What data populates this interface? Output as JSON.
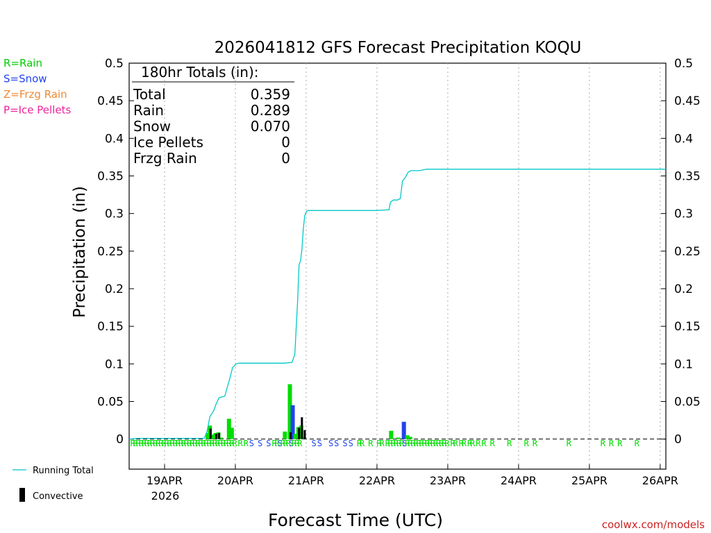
{
  "chart_data": {
    "type": "bar",
    "title": "2026041812 GFS Forecast Precipitation KOQU",
    "xlabel": "Forecast Time (UTC)",
    "ylabel": "Precipitation (in)",
    "ylim": [
      -0.04,
      0.5
    ],
    "xlim_days": [
      0,
      7.58
    ],
    "y_ticks": [
      "0",
      "0.05",
      "0.1",
      "0.15",
      "0.2",
      "0.25",
      "0.3",
      "0.35",
      "0.4",
      "0.45",
      "0.5"
    ],
    "x_ticks": [
      {
        "label": "19APR",
        "day": 0.5
      },
      {
        "label": "20APR",
        "day": 1.5
      },
      {
        "label": "21APR",
        "day": 2.5
      },
      {
        "label": "22APR",
        "day": 3.5
      },
      {
        "label": "23APR",
        "day": 4.5
      },
      {
        "label": "24APR",
        "day": 5.5
      },
      {
        "label": "25APR",
        "day": 6.5
      },
      {
        "label": "26APR",
        "day": 7.5
      }
    ],
    "x_year_label": "2026",
    "totals_box": {
      "heading": "180hr Totals (in):",
      "rows": [
        {
          "label": "Total",
          "value": "0.359"
        },
        {
          "label": "Rain",
          "value": "0.289"
        },
        {
          "label": "Snow",
          "value": "0.070"
        },
        {
          "label": "Ice Pellets",
          "value": "0"
        },
        {
          "label": "Frzg Rain",
          "value": "0"
        }
      ]
    },
    "ptype_legend": [
      {
        "text": "R=Rain",
        "color": "#00cc00"
      },
      {
        "text": "S=Snow",
        "color": "#2244ee"
      },
      {
        "text": "Z=Frzg Rain",
        "color": "#ee8833"
      },
      {
        "text": "P=Ice Pellets",
        "color": "#ee2299"
      }
    ],
    "legend_running_total": "Running Total",
    "legend_convective": "Convective",
    "credit": "coolwx.com/models",
    "colors": {
      "rain": "#00dd00",
      "snow": "#2244ee",
      "convective": "#000000",
      "running_total": "#00c8c8",
      "credit": "#cc2222"
    },
    "running_total": {
      "x": [
        0.0,
        0.12,
        0.5,
        1.06,
        1.1,
        1.14,
        1.19,
        1.23,
        1.27,
        1.35,
        1.42,
        1.46,
        1.51,
        1.55,
        1.59,
        1.63,
        1.68,
        1.72,
        1.9,
        2.1,
        2.2,
        2.3,
        2.34,
        2.38,
        2.4,
        2.42,
        2.44,
        2.46,
        2.48,
        2.5,
        2.52,
        2.54,
        2.56,
        2.58,
        2.6,
        2.7,
        3.0,
        3.5,
        3.67,
        3.69,
        3.73,
        3.79,
        3.83,
        3.86,
        3.9,
        3.94,
        3.98,
        4.03,
        4.1,
        4.2,
        4.5,
        5.5,
        6.5,
        7.58
      ],
      "y": [
        0,
        0.001,
        0.001,
        0.001,
        0.01,
        0.03,
        0.037,
        0.047,
        0.055,
        0.057,
        0.08,
        0.095,
        0.1,
        0.101,
        0.101,
        0.101,
        0.101,
        0.101,
        0.101,
        0.101,
        0.101,
        0.102,
        0.113,
        0.185,
        0.232,
        0.237,
        0.252,
        0.28,
        0.297,
        0.302,
        0.304,
        0.304,
        0.304,
        0.304,
        0.304,
        0.304,
        0.304,
        0.304,
        0.305,
        0.315,
        0.318,
        0.318,
        0.32,
        0.343,
        0.348,
        0.355,
        0.357,
        0.357,
        0.357,
        0.359,
        0.359,
        0.359,
        0.359,
        0.359
      ]
    },
    "bars": [
      {
        "x": 1.11,
        "value": 0.008,
        "ptype": "rain"
      },
      {
        "x": 1.14,
        "value": 0.018,
        "ptype": "rain"
      },
      {
        "x": 1.18,
        "value": 0.006,
        "ptype": "rain"
      },
      {
        "x": 1.22,
        "value": 0.008,
        "ptype": "rain"
      },
      {
        "x": 1.26,
        "value": 0.009,
        "ptype": "rain"
      },
      {
        "x": 1.3,
        "value": 0.002,
        "ptype": "rain"
      },
      {
        "x": 1.41,
        "value": 0.027,
        "ptype": "rain"
      },
      {
        "x": 1.45,
        "value": 0.015,
        "ptype": "rain"
      },
      {
        "x": 2.2,
        "value": 0.01,
        "ptype": "rain"
      },
      {
        "x": 2.27,
        "value": 0.073,
        "ptype": "rain"
      },
      {
        "x": 2.31,
        "value": 0.045,
        "ptype": "snow"
      },
      {
        "x": 2.35,
        "value": 0.007,
        "ptype": "rain"
      },
      {
        "x": 2.39,
        "value": 0.016,
        "ptype": "rain"
      },
      {
        "x": 2.43,
        "value": 0.018,
        "ptype": "rain"
      },
      {
        "x": 2.47,
        "value": 0.003,
        "ptype": "rain"
      },
      {
        "x": 3.7,
        "value": 0.011,
        "ptype": "rain"
      },
      {
        "x": 3.8,
        "value": 0.002,
        "ptype": "rain"
      },
      {
        "x": 3.88,
        "value": 0.023,
        "ptype": "snow"
      },
      {
        "x": 3.93,
        "value": 0.005,
        "ptype": "rain"
      },
      {
        "x": 3.97,
        "value": 0.003,
        "ptype": "rain"
      }
    ],
    "convective": [
      {
        "x": 1.15,
        "value": 0.014
      },
      {
        "x": 1.23,
        "value": 0.007
      },
      {
        "x": 1.27,
        "value": 0.008
      },
      {
        "x": 2.28,
        "value": 0.009
      },
      {
        "x": 2.4,
        "value": 0.015
      },
      {
        "x": 2.44,
        "value": 0.029
      },
      {
        "x": 2.48,
        "value": 0.012
      }
    ],
    "ptype_markers": [
      {
        "x": 0.05,
        "text": "R",
        "ptype": "rain"
      },
      {
        "x": 0.09,
        "text": "R",
        "ptype": "rain"
      },
      {
        "x": 0.13,
        "text": "R",
        "ptype": "rain"
      },
      {
        "x": 0.17,
        "text": "R",
        "ptype": "rain"
      },
      {
        "x": 0.21,
        "text": "R",
        "ptype": "rain"
      },
      {
        "x": 0.25,
        "text": "R",
        "ptype": "rain"
      },
      {
        "x": 0.29,
        "text": "R",
        "ptype": "rain"
      },
      {
        "x": 0.33,
        "text": "R",
        "ptype": "rain"
      },
      {
        "x": 0.37,
        "text": "R",
        "ptype": "rain"
      },
      {
        "x": 0.41,
        "text": "R",
        "ptype": "rain"
      },
      {
        "x": 0.45,
        "text": "R",
        "ptype": "rain"
      },
      {
        "x": 0.49,
        "text": "R",
        "ptype": "rain"
      },
      {
        "x": 0.53,
        "text": "R",
        "ptype": "rain"
      },
      {
        "x": 0.57,
        "text": "R",
        "ptype": "rain"
      },
      {
        "x": 0.61,
        "text": "R",
        "ptype": "rain"
      },
      {
        "x": 0.65,
        "text": "R",
        "ptype": "rain"
      },
      {
        "x": 0.69,
        "text": "R",
        "ptype": "rain"
      },
      {
        "x": 0.73,
        "text": "R",
        "ptype": "rain"
      },
      {
        "x": 0.77,
        "text": "R",
        "ptype": "rain"
      },
      {
        "x": 0.81,
        "text": "R",
        "ptype": "rain"
      },
      {
        "x": 0.85,
        "text": "R",
        "ptype": "rain"
      },
      {
        "x": 0.89,
        "text": "R",
        "ptype": "rain"
      },
      {
        "x": 0.93,
        "text": "R",
        "ptype": "rain"
      },
      {
        "x": 0.97,
        "text": "R",
        "ptype": "rain"
      },
      {
        "x": 1.01,
        "text": "R",
        "ptype": "rain"
      },
      {
        "x": 1.05,
        "text": "R",
        "ptype": "rain"
      },
      {
        "x": 1.09,
        "text": "R",
        "ptype": "rain"
      },
      {
        "x": 1.13,
        "text": "R",
        "ptype": "rain"
      },
      {
        "x": 1.17,
        "text": "R",
        "ptype": "rain"
      },
      {
        "x": 1.21,
        "text": "R",
        "ptype": "rain"
      },
      {
        "x": 1.25,
        "text": "R",
        "ptype": "rain"
      },
      {
        "x": 1.29,
        "text": "R",
        "ptype": "rain"
      },
      {
        "x": 1.33,
        "text": "R",
        "ptype": "rain"
      },
      {
        "x": 1.37,
        "text": "R",
        "ptype": "rain"
      },
      {
        "x": 1.41,
        "text": "R",
        "ptype": "rain"
      },
      {
        "x": 1.45,
        "text": "R",
        "ptype": "rain"
      },
      {
        "x": 1.49,
        "text": "R",
        "ptype": "rain"
      },
      {
        "x": 1.57,
        "text": "R",
        "ptype": "rain"
      },
      {
        "x": 1.65,
        "text": "R",
        "ptype": "rain"
      },
      {
        "x": 1.73,
        "text": "S",
        "ptype": "snow"
      },
      {
        "x": 1.85,
        "text": "S",
        "ptype": "snow"
      },
      {
        "x": 1.97,
        "text": "S",
        "ptype": "snow"
      },
      {
        "x": 2.05,
        "text": "R",
        "ptype": "rain"
      },
      {
        "x": 2.09,
        "text": "R",
        "ptype": "rain"
      },
      {
        "x": 2.13,
        "text": "S",
        "ptype": "snow"
      },
      {
        "x": 2.17,
        "text": "R",
        "ptype": "rain"
      },
      {
        "x": 2.21,
        "text": "R",
        "ptype": "rain"
      },
      {
        "x": 2.25,
        "text": "R",
        "ptype": "rain"
      },
      {
        "x": 2.29,
        "text": "S",
        "ptype": "snow"
      },
      {
        "x": 2.33,
        "text": "R",
        "ptype": "rain"
      },
      {
        "x": 2.37,
        "text": "R",
        "ptype": "rain"
      },
      {
        "x": 2.41,
        "text": "R",
        "ptype": "rain"
      },
      {
        "x": 2.61,
        "text": "S",
        "ptype": "snow"
      },
      {
        "x": 2.69,
        "text": "S",
        "ptype": "snow"
      },
      {
        "x": 2.85,
        "text": "S",
        "ptype": "snow"
      },
      {
        "x": 2.93,
        "text": "S",
        "ptype": "snow"
      },
      {
        "x": 3.05,
        "text": "S",
        "ptype": "snow"
      },
      {
        "x": 3.13,
        "text": "S",
        "ptype": "snow"
      },
      {
        "x": 3.25,
        "text": "R",
        "ptype": "rain"
      },
      {
        "x": 3.29,
        "text": "R",
        "ptype": "rain"
      },
      {
        "x": 3.41,
        "text": "R",
        "ptype": "rain"
      },
      {
        "x": 3.53,
        "text": "R",
        "ptype": "rain"
      },
      {
        "x": 3.57,
        "text": "R",
        "ptype": "rain"
      },
      {
        "x": 3.65,
        "text": "R",
        "ptype": "rain"
      },
      {
        "x": 3.69,
        "text": "R",
        "ptype": "rain"
      },
      {
        "x": 3.73,
        "text": "R",
        "ptype": "rain"
      },
      {
        "x": 3.77,
        "text": "R",
        "ptype": "rain"
      },
      {
        "x": 3.81,
        "text": "R",
        "ptype": "rain"
      },
      {
        "x": 3.85,
        "text": "R",
        "ptype": "rain"
      },
      {
        "x": 3.89,
        "text": "S",
        "ptype": "snow"
      },
      {
        "x": 3.93,
        "text": "R",
        "ptype": "rain"
      },
      {
        "x": 3.97,
        "text": "R",
        "ptype": "rain"
      },
      {
        "x": 4.01,
        "text": "R",
        "ptype": "rain"
      },
      {
        "x": 4.05,
        "text": "R",
        "ptype": "rain"
      },
      {
        "x": 4.09,
        "text": "R",
        "ptype": "rain"
      },
      {
        "x": 4.13,
        "text": "R",
        "ptype": "rain"
      },
      {
        "x": 4.17,
        "text": "R",
        "ptype": "rain"
      },
      {
        "x": 4.21,
        "text": "R",
        "ptype": "rain"
      },
      {
        "x": 4.25,
        "text": "R",
        "ptype": "rain"
      },
      {
        "x": 4.29,
        "text": "R",
        "ptype": "rain"
      },
      {
        "x": 4.33,
        "text": "R",
        "ptype": "rain"
      },
      {
        "x": 4.37,
        "text": "R",
        "ptype": "rain"
      },
      {
        "x": 4.41,
        "text": "R",
        "ptype": "rain"
      },
      {
        "x": 4.45,
        "text": "R",
        "ptype": "rain"
      },
      {
        "x": 4.49,
        "text": "R",
        "ptype": "rain"
      },
      {
        "x": 4.57,
        "text": "R",
        "ptype": "rain"
      },
      {
        "x": 4.61,
        "text": "R",
        "ptype": "rain"
      },
      {
        "x": 4.69,
        "text": "R",
        "ptype": "rain"
      },
      {
        "x": 4.73,
        "text": "R",
        "ptype": "rain"
      },
      {
        "x": 4.81,
        "text": "R",
        "ptype": "rain"
      },
      {
        "x": 4.85,
        "text": "R",
        "ptype": "rain"
      },
      {
        "x": 4.93,
        "text": "R",
        "ptype": "rain"
      },
      {
        "x": 5.01,
        "text": "R",
        "ptype": "rain"
      },
      {
        "x": 5.13,
        "text": "R",
        "ptype": "rain"
      },
      {
        "x": 5.37,
        "text": "R",
        "ptype": "rain"
      },
      {
        "x": 5.61,
        "text": "R",
        "ptype": "rain"
      },
      {
        "x": 5.73,
        "text": "R",
        "ptype": "rain"
      },
      {
        "x": 6.21,
        "text": "R",
        "ptype": "rain"
      },
      {
        "x": 6.69,
        "text": "R",
        "ptype": "rain"
      },
      {
        "x": 6.81,
        "text": "R",
        "ptype": "rain"
      },
      {
        "x": 6.93,
        "text": "R",
        "ptype": "rain"
      },
      {
        "x": 7.17,
        "text": "R",
        "ptype": "rain"
      }
    ]
  }
}
